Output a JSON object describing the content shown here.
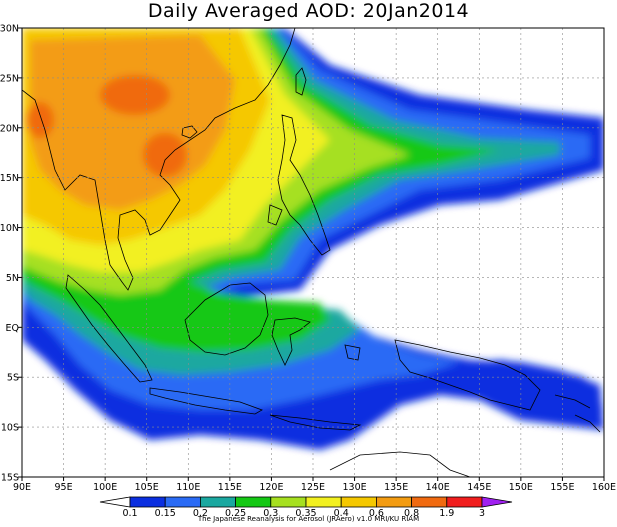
{
  "title": "Daily Averaged AOD: 20Jan2014",
  "credit": "The Japanese Reanalysis for Aerosol (JRAero) v1.0 MRI/KU RIAM",
  "x_ticks": [
    "90E",
    "95E",
    "100E",
    "105E",
    "110E",
    "115E",
    "120E",
    "125E",
    "130E",
    "135E",
    "140E",
    "145E",
    "150E",
    "155E",
    "160E"
  ],
  "y_ticks": [
    "30N",
    "25N",
    "20N",
    "15N",
    "10N",
    "5N",
    "EQ",
    "5S",
    "10S",
    "15S"
  ],
  "colorbar": {
    "labels": [
      "0.1",
      "0.15",
      "0.2",
      "0.25",
      "0.3",
      "0.35",
      "0.4",
      "0.6",
      "0.8",
      "1.9",
      "3"
    ],
    "colors": [
      "#ffffff",
      "#0b2fe0",
      "#2a6bf5",
      "#1aa8a0",
      "#14c814",
      "#a6e020",
      "#f2f020",
      "#f5c800",
      "#f39c12",
      "#f06a10",
      "#f01e1e",
      "#a020f0"
    ]
  }
}
